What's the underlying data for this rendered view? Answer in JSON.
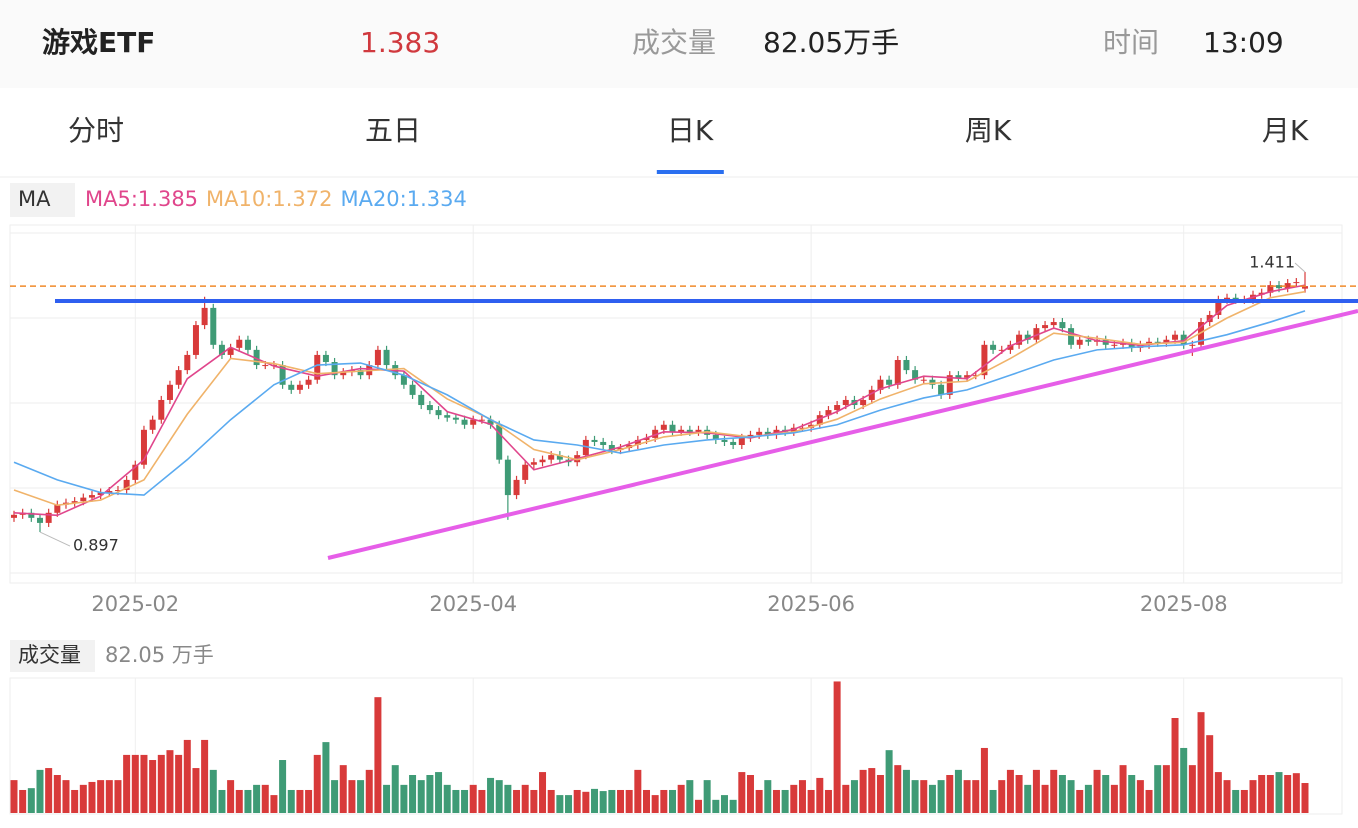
{
  "header": {
    "name": "游戏ETF",
    "price": 1.383,
    "volume_label": "成交量",
    "volume": "82.05万手",
    "time_label": "时间",
    "time": "13:09"
  },
  "tabs": [
    "分时",
    "五日",
    "日K",
    "周K",
    "月K"
  ],
  "active_tab": 2,
  "chart_data": [
    {
      "type": "candlestick",
      "legend_title": "MA",
      "up_color": "#d83a3a",
      "down_color": "#3f9b76",
      "price_line_color": "#f08a2a",
      "categories": [
        null,
        null,
        null,
        null,
        null,
        null,
        null,
        null,
        null,
        null,
        null,
        null,
        null,
        null,
        "2025-02",
        null,
        null,
        null,
        null,
        null,
        null,
        null,
        null,
        null,
        null,
        null,
        null,
        null,
        null,
        null,
        null,
        null,
        null,
        null,
        null,
        null,
        null,
        null,
        null,
        null,
        null,
        null,
        null,
        null,
        null,
        null,
        null,
        null,
        null,
        null,
        null,
        null,
        null,
        "2025-04",
        null,
        null,
        null,
        null,
        null,
        null,
        null,
        null,
        null,
        null,
        null,
        null,
        null,
        null,
        null,
        null,
        null,
        null,
        null,
        null,
        null,
        null,
        null,
        null,
        null,
        null,
        null,
        null,
        null,
        null,
        null,
        null,
        null,
        null,
        null,
        null,
        null,
        null,
        "2025-06",
        null,
        null,
        null,
        null,
        null,
        null,
        null,
        null,
        null,
        null,
        null,
        null,
        null,
        null,
        null,
        null,
        null,
        null,
        null,
        null,
        null,
        null,
        null,
        null,
        null,
        null,
        null,
        null,
        null,
        null,
        null,
        null,
        null,
        null,
        null,
        null,
        null,
        null,
        null,
        null,
        null,
        null,
        "2025-08",
        null,
        null,
        null,
        null,
        null,
        null,
        null,
        null,
        null,
        null,
        null,
        null,
        null,
        null
      ],
      "open": [
        0.925,
        0.931,
        0.935,
        0.925,
        0.915,
        0.935,
        0.951,
        0.955,
        0.958,
        0.965,
        0.97,
        0.975,
        0.978,
        0.98,
        1.0,
        1.03,
        1.099,
        1.119,
        1.158,
        1.188,
        1.217,
        1.247,
        1.306,
        1.34,
        1.267,
        1.247,
        1.261,
        1.277,
        1.257,
        1.227,
        1.227,
        1.227,
        1.188,
        1.178,
        1.188,
        1.198,
        1.247,
        1.233,
        1.207,
        1.213,
        1.217,
        1.207,
        1.227,
        1.257,
        1.227,
        1.207,
        1.188,
        1.168,
        1.148,
        1.138,
        1.128,
        1.123,
        1.119,
        1.109,
        1.119,
        1.119,
        1.109,
        1.04,
        0.97,
        1.0,
        1.03,
        1.035,
        1.04,
        1.049,
        1.04,
        1.035,
        1.049,
        1.079,
        1.075,
        1.069,
        1.059,
        1.063,
        1.069,
        1.079,
        1.083,
        1.099,
        1.109,
        1.095,
        1.099,
        1.095,
        1.099,
        1.089,
        1.079,
        1.075,
        1.069,
        1.083,
        1.089,
        1.095,
        1.089,
        1.099,
        1.095,
        1.103,
        1.103,
        1.109,
        1.128,
        1.138,
        1.148,
        1.158,
        1.148,
        1.158,
        1.178,
        1.198,
        1.188,
        1.237,
        1.217,
        1.198,
        1.198,
        1.188,
        1.168,
        1.207,
        1.202,
        1.207,
        1.207,
        1.267,
        1.257,
        1.257,
        1.267,
        1.287,
        1.277,
        1.3,
        1.306,
        1.312,
        1.3,
        1.267,
        1.277,
        1.273,
        1.277,
        1.267,
        1.267,
        1.271,
        1.261,
        1.267,
        1.273,
        1.271,
        1.277,
        1.287,
        1.267,
        1.267,
        1.312,
        1.326,
        1.356,
        1.36,
        1.356,
        1.356,
        1.366,
        1.37,
        1.385,
        1.379,
        1.389,
        1.378
      ],
      "high": [
        0.939,
        0.943,
        0.943,
        0.933,
        0.943,
        0.959,
        0.963,
        0.966,
        0.973,
        0.978,
        0.983,
        0.986,
        0.988,
        1.008,
        1.038,
        1.107,
        1.127,
        1.166,
        1.196,
        1.225,
        1.255,
        1.314,
        1.362,
        1.348,
        1.275,
        1.269,
        1.285,
        1.285,
        1.265,
        1.235,
        1.235,
        1.235,
        1.196,
        1.196,
        1.206,
        1.255,
        1.255,
        1.241,
        1.221,
        1.225,
        1.225,
        1.235,
        1.265,
        1.265,
        1.235,
        1.215,
        1.196,
        1.176,
        1.156,
        1.146,
        1.136,
        1.131,
        1.127,
        1.127,
        1.127,
        1.127,
        1.117,
        1.048,
        1.008,
        1.038,
        1.043,
        1.048,
        1.057,
        1.057,
        1.048,
        1.057,
        1.087,
        1.087,
        1.083,
        1.077,
        1.071,
        1.077,
        1.087,
        1.091,
        1.107,
        1.117,
        1.117,
        1.107,
        1.107,
        1.107,
        1.107,
        1.097,
        1.087,
        1.083,
        1.091,
        1.097,
        1.103,
        1.103,
        1.107,
        1.107,
        1.111,
        1.111,
        1.117,
        1.136,
        1.146,
        1.156,
        1.166,
        1.166,
        1.166,
        1.186,
        1.206,
        1.206,
        1.245,
        1.245,
        1.225,
        1.206,
        1.206,
        1.196,
        1.215,
        1.215,
        1.215,
        1.215,
        1.275,
        1.275,
        1.265,
        1.275,
        1.295,
        1.295,
        1.308,
        1.314,
        1.32,
        1.32,
        1.308,
        1.285,
        1.285,
        1.285,
        1.285,
        1.275,
        1.279,
        1.279,
        1.275,
        1.281,
        1.281,
        1.285,
        1.295,
        1.295,
        1.275,
        1.32,
        1.334,
        1.364,
        1.368,
        1.368,
        1.364,
        1.374,
        1.378,
        1.393,
        1.393,
        1.397,
        1.399,
        1.411
      ],
      "low": [
        0.917,
        0.923,
        0.917,
        0.897,
        0.907,
        0.927,
        0.943,
        0.947,
        0.95,
        0.957,
        0.962,
        0.967,
        0.97,
        0.972,
        0.992,
        1.022,
        1.091,
        1.111,
        1.15,
        1.18,
        1.209,
        1.239,
        1.298,
        1.259,
        1.239,
        1.239,
        1.253,
        1.249,
        1.219,
        1.219,
        1.219,
        1.18,
        1.17,
        1.17,
        1.18,
        1.19,
        1.225,
        1.199,
        1.199,
        1.205,
        1.199,
        1.199,
        1.219,
        1.219,
        1.199,
        1.18,
        1.16,
        1.14,
        1.13,
        1.12,
        1.115,
        1.111,
        1.101,
        1.101,
        1.111,
        1.101,
        1.032,
        0.921,
        0.962,
        0.992,
        1.022,
        1.027,
        1.032,
        1.032,
        1.027,
        1.027,
        1.041,
        1.067,
        1.061,
        1.051,
        1.051,
        1.055,
        1.061,
        1.071,
        1.075,
        1.091,
        1.087,
        1.087,
        1.087,
        1.087,
        1.081,
        1.071,
        1.067,
        1.061,
        1.061,
        1.075,
        1.081,
        1.081,
        1.081,
        1.087,
        1.087,
        1.095,
        1.095,
        1.101,
        1.12,
        1.13,
        1.14,
        1.14,
        1.14,
        1.15,
        1.17,
        1.18,
        1.18,
        1.209,
        1.19,
        1.19,
        1.18,
        1.16,
        1.16,
        1.194,
        1.194,
        1.199,
        1.199,
        1.249,
        1.249,
        1.249,
        1.259,
        1.269,
        1.269,
        1.292,
        1.298,
        1.292,
        1.259,
        1.259,
        1.265,
        1.265,
        1.259,
        1.259,
        1.259,
        1.253,
        1.253,
        1.259,
        1.263,
        1.263,
        1.269,
        1.259,
        1.245,
        1.259,
        1.304,
        1.318,
        1.348,
        1.348,
        1.348,
        1.348,
        1.358,
        1.362,
        1.371,
        1.371,
        1.381,
        1.37
      ],
      "close": [
        0.931,
        0.935,
        0.925,
        0.915,
        0.935,
        0.951,
        0.955,
        0.958,
        0.965,
        0.97,
        0.975,
        0.978,
        0.98,
        1.0,
        1.03,
        1.099,
        1.119,
        1.158,
        1.188,
        1.217,
        1.247,
        1.306,
        1.34,
        1.267,
        1.247,
        1.261,
        1.277,
        1.257,
        1.227,
        1.227,
        1.227,
        1.188,
        1.178,
        1.188,
        1.198,
        1.247,
        1.233,
        1.207,
        1.213,
        1.217,
        1.207,
        1.227,
        1.257,
        1.227,
        1.207,
        1.188,
        1.168,
        1.148,
        1.138,
        1.128,
        1.123,
        1.119,
        1.109,
        1.119,
        1.119,
        1.109,
        1.04,
        0.97,
        1.0,
        1.03,
        1.035,
        1.04,
        1.049,
        1.04,
        1.035,
        1.049,
        1.079,
        1.075,
        1.069,
        1.059,
        1.063,
        1.069,
        1.079,
        1.083,
        1.099,
        1.109,
        1.095,
        1.099,
        1.095,
        1.099,
        1.089,
        1.079,
        1.075,
        1.069,
        1.083,
        1.089,
        1.095,
        1.089,
        1.099,
        1.095,
        1.103,
        1.103,
        1.109,
        1.128,
        1.138,
        1.148,
        1.158,
        1.148,
        1.158,
        1.178,
        1.198,
        1.188,
        1.237,
        1.217,
        1.198,
        1.198,
        1.188,
        1.168,
        1.207,
        1.202,
        1.207,
        1.207,
        1.267,
        1.257,
        1.257,
        1.267,
        1.287,
        1.277,
        1.3,
        1.306,
        1.312,
        1.3,
        1.267,
        1.277,
        1.273,
        1.277,
        1.267,
        1.267,
        1.271,
        1.261,
        1.267,
        1.273,
        1.271,
        1.277,
        1.287,
        1.267,
        1.267,
        1.312,
        1.326,
        1.356,
        1.36,
        1.356,
        1.356,
        1.366,
        1.37,
        1.385,
        1.379,
        1.389,
        1.391,
        1.383
      ],
      "series": [
        {
          "name": "MA5:1.385",
          "color": "#e0468c",
          "x": [
            0,
            5,
            10,
            15,
            20,
            25,
            30,
            35,
            40,
            45,
            50,
            55,
            60,
            65,
            70,
            75,
            80,
            85,
            90,
            95,
            100,
            105,
            110,
            115,
            120,
            125,
            130,
            135,
            140,
            145,
            149
          ],
          "values": [
            0.935,
            0.93,
            0.968,
            1.04,
            1.2,
            1.262,
            1.225,
            1.205,
            1.22,
            1.215,
            1.135,
            1.11,
            1.02,
            1.042,
            1.065,
            1.095,
            1.093,
            1.083,
            1.1,
            1.135,
            1.18,
            1.205,
            1.2,
            1.265,
            1.3,
            1.275,
            1.266,
            1.275,
            1.345,
            1.372,
            1.385
          ]
        },
        {
          "name": "MA10:1.372",
          "color": "#f0b36a",
          "x": [
            0,
            5,
            10,
            15,
            20,
            25,
            30,
            35,
            40,
            45,
            50,
            55,
            60,
            65,
            70,
            75,
            80,
            85,
            90,
            95,
            100,
            105,
            110,
            115,
            120,
            125,
            130,
            135,
            140,
            145,
            149
          ],
          "values": [
            0.98,
            0.95,
            0.96,
            1.0,
            1.13,
            1.24,
            1.23,
            1.21,
            1.215,
            1.22,
            1.16,
            1.12,
            1.06,
            1.04,
            1.06,
            1.085,
            1.095,
            1.085,
            1.095,
            1.12,
            1.16,
            1.19,
            1.195,
            1.24,
            1.29,
            1.28,
            1.268,
            1.272,
            1.32,
            1.36,
            1.372
          ]
        },
        {
          "name": "MA20:1.334",
          "color": "#5aaaf0",
          "x": [
            0,
            5,
            10,
            15,
            20,
            25,
            30,
            35,
            40,
            45,
            50,
            55,
            60,
            65,
            70,
            75,
            80,
            85,
            90,
            95,
            100,
            105,
            110,
            115,
            120,
            125,
            130,
            135,
            140,
            145,
            149
          ],
          "values": [
            1.035,
            1.0,
            0.975,
            0.97,
            1.04,
            1.119,
            1.188,
            1.227,
            1.231,
            1.207,
            1.168,
            1.119,
            1.079,
            1.069,
            1.053,
            1.069,
            1.079,
            1.085,
            1.093,
            1.109,
            1.138,
            1.162,
            1.178,
            1.207,
            1.237,
            1.257,
            1.263,
            1.267,
            1.287,
            1.312,
            1.334
          ]
        }
      ],
      "ylim": [
        0.816,
        1.488
      ],
      "grid": true
    },
    {
      "type": "bar",
      "title": "成交量",
      "subtitle": "82.05 万手",
      "values": [
        90,
        63,
        68,
        118,
        123,
        104,
        90,
        63,
        77,
        85,
        90,
        90,
        90,
        159,
        159,
        159,
        145,
        159,
        172,
        159,
        200,
        123,
        200,
        118,
        63,
        90,
        63,
        63,
        77,
        77,
        49,
        145,
        63,
        63,
        63,
        159,
        194,
        90,
        131,
        90,
        90,
        118,
        317,
        77,
        131,
        77,
        104,
        90,
        104,
        112,
        77,
        63,
        63,
        77,
        63,
        96,
        90,
        77,
        63,
        77,
        63,
        112,
        63,
        49,
        49,
        63,
        58,
        66,
        60,
        63,
        63,
        63,
        118,
        63,
        49,
        63,
        63,
        77,
        90,
        36,
        90,
        36,
        49,
        36,
        112,
        104,
        63,
        90,
        63,
        63,
        77,
        90,
        63,
        96,
        63,
        360,
        77,
        90,
        118,
        123,
        104,
        172,
        131,
        118,
        90,
        90,
        77,
        90,
        104,
        118,
        90,
        90,
        178,
        63,
        90,
        118,
        104,
        77,
        118,
        77,
        118,
        104,
        90,
        63,
        77,
        118,
        104,
        77,
        131,
        104,
        90,
        63,
        131,
        131,
        260,
        178,
        131,
        276,
        213,
        112,
        90,
        63,
        63,
        90,
        104,
        104,
        112,
        104,
        109,
        82.05
      ],
      "ylim": [
        0,
        364
      ]
    }
  ]
}
